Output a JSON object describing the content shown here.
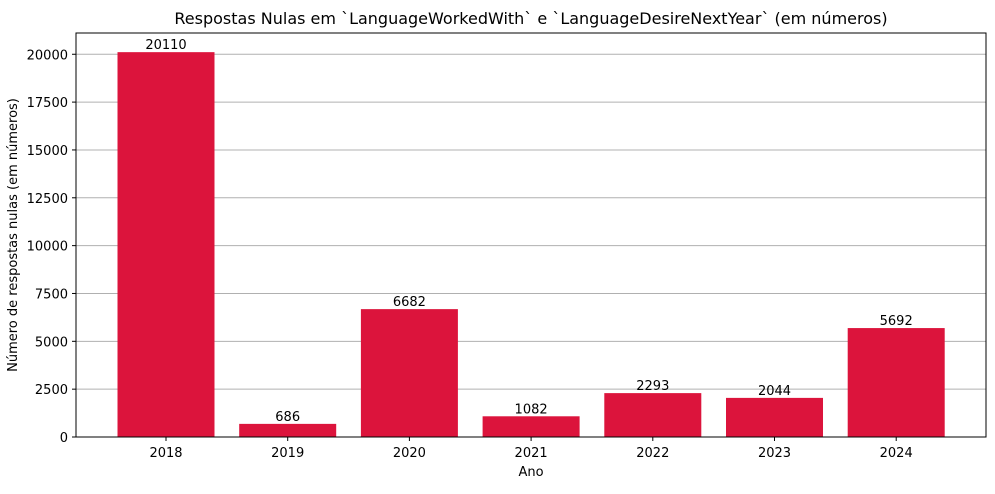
{
  "chart_data": {
    "type": "bar",
    "title": "Respostas Nulas em `LanguageWorkedWith` e `LanguageDesireNextYear` (em números)",
    "xlabel": "Ano",
    "ylabel": "Número de respostas nulas (em números)",
    "categories": [
      "2018",
      "2019",
      "2020",
      "2021",
      "2022",
      "2023",
      "2024"
    ],
    "values": [
      20110,
      686,
      6682,
      1082,
      2293,
      2044,
      5692
    ],
    "ylim": [
      0,
      21111
    ],
    "yticks": [
      0,
      2500,
      5000,
      7500,
      10000,
      12500,
      15000,
      17500,
      20000
    ],
    "grid": "y",
    "bar_color": "#DC143C",
    "grid_color": "#b0b0b0"
  }
}
